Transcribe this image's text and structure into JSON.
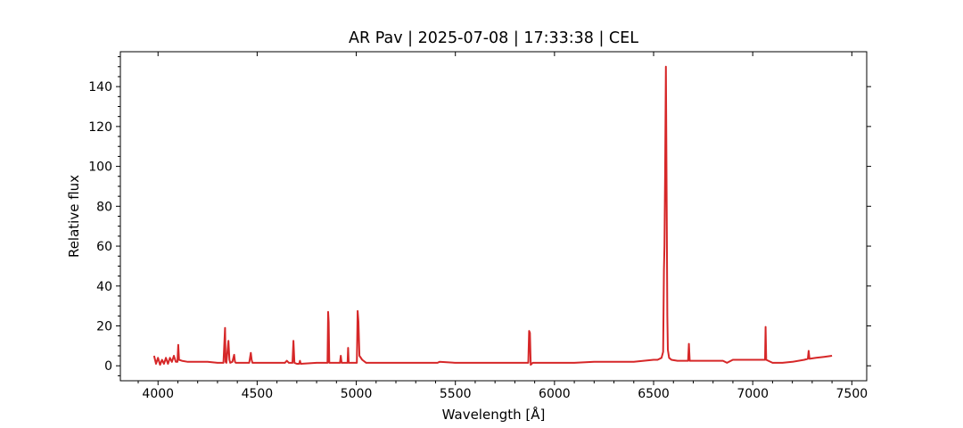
{
  "chart_data": {
    "type": "line",
    "title": "AR Pav | 2025-07-08 | 17:33:38 | CEL",
    "xlabel": "Wavelength [Å]",
    "ylabel": "Relative flux",
    "xlim": [
      3810,
      7575
    ],
    "ylim": [
      -7.5,
      157.5
    ],
    "xticks": [
      4000,
      4500,
      5000,
      5500,
      6000,
      6500,
      7000,
      7500
    ],
    "yticks": [
      0,
      20,
      40,
      60,
      80,
      100,
      120,
      140
    ],
    "grid": false,
    "legend": "none",
    "line_color": "#d62728",
    "series": [
      {
        "x": [
          3980,
          3990,
          4000,
          4010,
          4020,
          4030,
          4040,
          4050,
          4060,
          4070,
          4080,
          4090,
          4098,
          4102,
          4106,
          4120,
          4150,
          4200,
          4250,
          4300,
          4330,
          4338,
          4341,
          4345,
          4355,
          4360,
          4364,
          4375,
          4384,
          4388,
          4392,
          4420,
          4460,
          4468,
          4472,
          4476,
          4500,
          4550,
          4600,
          4640,
          4650,
          4660,
          4678,
          4683,
          4688,
          4700,
          4712,
          4716,
          4720,
          4800,
          4855,
          4858,
          4861,
          4864,
          4868,
          4900,
          4918,
          4922,
          4926,
          4950,
          4956,
          4959,
          4962,
          4995,
          5003,
          5007,
          5011,
          5016,
          5030,
          5050,
          5100,
          5200,
          5300,
          5410,
          5420,
          5500,
          5600,
          5700,
          5800,
          5868,
          5872,
          5876,
          5880,
          5890,
          5900,
          6000,
          6100,
          6200,
          6300,
          6400,
          6450,
          6500,
          6520,
          6540,
          6548,
          6552,
          6555,
          6558,
          6562,
          6566,
          6569,
          6572,
          6578,
          6590,
          6620,
          6660,
          6674,
          6678,
          6682,
          6700,
          6800,
          6850,
          6870,
          6900,
          6950,
          7000,
          7050,
          7062,
          7065,
          7068,
          7100,
          7150,
          7200,
          7260,
          7278,
          7282,
          7286,
          7320,
          7360,
          7400
        ],
        "y": [
          5,
          1,
          4,
          0.5,
          3,
          1,
          4,
          1,
          4,
          2,
          5,
          2,
          2,
          10.5,
          3,
          2.5,
          2,
          2,
          2,
          1.5,
          1.5,
          19,
          2,
          1.5,
          12.5,
          3,
          1.5,
          2,
          5.5,
          2,
          1.5,
          1.5,
          1.5,
          6.5,
          3,
          1.5,
          1.5,
          1.5,
          1.5,
          1.5,
          2.5,
          1.5,
          1.5,
          12.5,
          1.5,
          1,
          1,
          2.5,
          1,
          1.5,
          1.5,
          27,
          22,
          1.5,
          1.5,
          1.5,
          1.5,
          5,
          1.5,
          1.5,
          1.5,
          9,
          1.5,
          1.5,
          1.5,
          27.5,
          22,
          5,
          3,
          1.5,
          1.5,
          1.5,
          1.5,
          1.5,
          2,
          1.5,
          1.5,
          1.5,
          1.5,
          1.5,
          17.5,
          16.5,
          0.5,
          1.5,
          1.5,
          1.5,
          1.5,
          2,
          2,
          2,
          2.5,
          3,
          3,
          4,
          7,
          48,
          60,
          95,
          150,
          80,
          25,
          8,
          4,
          3,
          2.5,
          2.5,
          2.5,
          11,
          2.5,
          2.5,
          2.5,
          2.5,
          1.5,
          3,
          3,
          3,
          3,
          3,
          19.5,
          3,
          1.5,
          1.5,
          2,
          3,
          3.5,
          7.5,
          3.5,
          4,
          4.5,
          5
        ]
      }
    ]
  }
}
